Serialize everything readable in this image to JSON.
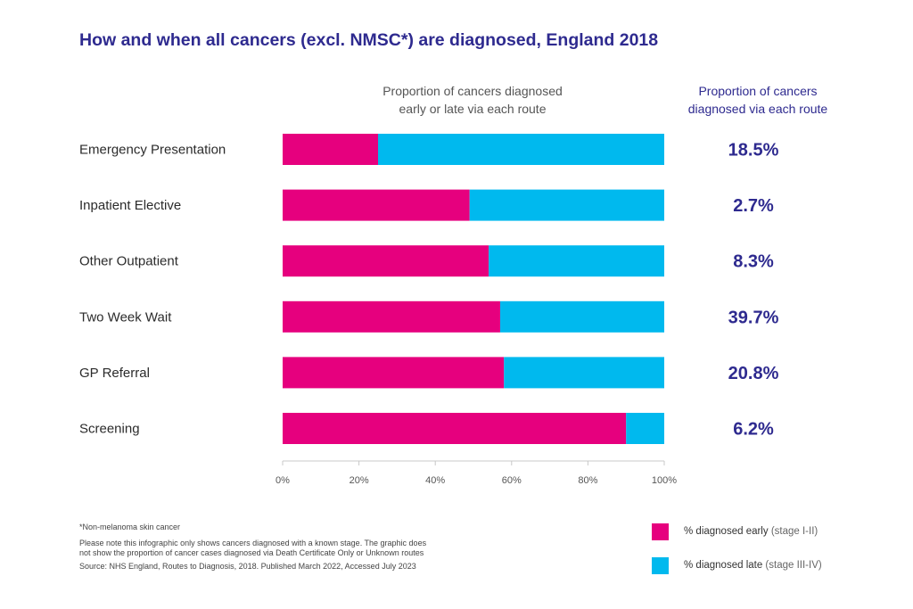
{
  "title": "How and when all cancers (excl. NMSC*) are diagnosed, England 2018",
  "headers": {
    "left_line1": "Proportion of cancers diagnosed",
    "left_line2": "early or late via each route",
    "right_line1": "Proportion of cancers",
    "right_line2": "diagnosed via each route"
  },
  "chart_data": {
    "type": "bar",
    "orientation": "horizontal",
    "stacked": true,
    "categories": [
      "Emergency Presentation",
      "Inpatient Elective",
      "Other Outpatient",
      "Two Week Wait",
      "GP Referral",
      "Screening"
    ],
    "series": [
      {
        "name": "% diagnosed early",
        "color": "#e6007e",
        "values": [
          25,
          49,
          54,
          57,
          58,
          90
        ]
      },
      {
        "name": "% diagnosed late",
        "color": "#00b9ee",
        "values": [
          75,
          51,
          46,
          43,
          42,
          10
        ]
      }
    ],
    "route_share": [
      "18.5%",
      "2.7%",
      "8.3%",
      "39.7%",
      "20.8%",
      "6.2%"
    ],
    "xlim": [
      0,
      100
    ],
    "xticks": [
      "0%",
      "20%",
      "40%",
      "60%",
      "80%",
      "100%"
    ],
    "legend_position": "bottom-right",
    "grid": false
  },
  "legend": [
    {
      "label": "% diagnosed early",
      "sub": " (stage I-II)",
      "color": "#e6007e"
    },
    {
      "label": "% diagnosed late",
      "sub": " (stage III-IV)",
      "color": "#00b9ee"
    }
  ],
  "footnotes": {
    "note1": "*Non-melanoma skin cancer",
    "note2": "Please note this infographic only shows cancers diagnosed with a known stage. The graphic does",
    "note3": "not show the proportion of cancer cases diagnosed via Death Certificate Only or Unknown routes",
    "source": "Source: NHS England, Routes to Diagnosis, 2018. Published March 2022, Accessed July 2023"
  },
  "colors": {
    "title": "#2e2a8f",
    "accent": "#2e2a8f",
    "early": "#e6007e",
    "late": "#00b9ee"
  }
}
